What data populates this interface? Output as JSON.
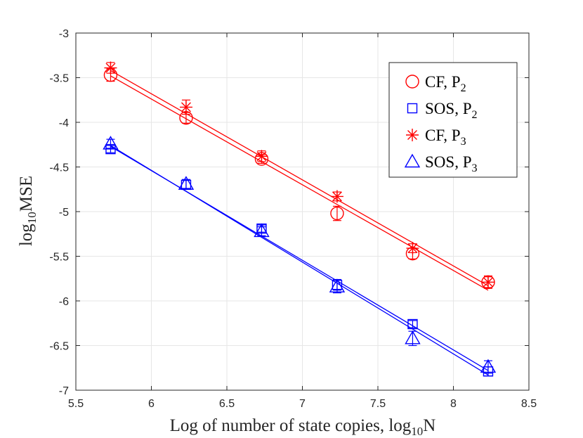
{
  "chart_data": {
    "type": "scatter",
    "xlabel": "Log of number of state copies, log",
    "xlabel_sub": "10",
    "xlabel_tail": "N",
    "ylabel": "log",
    "ylabel_sub": "10",
    "ylabel_tail": "MSE",
    "xlim": [
      5.5,
      8.5
    ],
    "ylim": [
      -7,
      -3
    ],
    "grid": true,
    "legend_position": "top-right",
    "x_ticks": [
      5.5,
      6,
      6.5,
      7,
      7.5,
      8,
      8.5
    ],
    "x_tick_labels": [
      "5.5",
      "6",
      "6.5",
      "7",
      "7.5",
      "8",
      "8.5"
    ],
    "y_ticks": [
      -3,
      -3.5,
      -4,
      -4.5,
      -5,
      -5.5,
      -6,
      -6.5,
      -7
    ],
    "y_tick_labels": [
      "-3",
      "-3.5",
      "-4",
      "-4.5",
      "-5",
      "-5.5",
      "-6",
      "-6.5",
      "-7"
    ],
    "series": [
      {
        "name": "CF, P2",
        "label_main": "CF, P",
        "label_sub": "2",
        "marker": "circle",
        "color": "#ff0000",
        "x": [
          5.73,
          6.23,
          6.73,
          7.23,
          7.73,
          8.23
        ],
        "y": [
          -3.47,
          -3.95,
          -4.41,
          -5.02,
          -5.47,
          -5.79
        ],
        "err": [
          0.07,
          0.06,
          0.05,
          0.08,
          0.06,
          0.07
        ],
        "fit": [
          -3.48,
          -5.88
        ]
      },
      {
        "name": "SOS, P2",
        "label_main": "SOS, P",
        "label_sub": "2",
        "marker": "square",
        "color": "#0000ff",
        "x": [
          5.73,
          6.23,
          6.73,
          7.23,
          7.73,
          8.23
        ],
        "y": [
          -4.3,
          -4.7,
          -5.19,
          -5.82,
          -6.26,
          -6.79
        ],
        "err": [
          0.04,
          0.05,
          0.04,
          0.06,
          0.04,
          0.05
        ],
        "fit": [
          -4.27,
          -6.78
        ]
      },
      {
        "name": "CF, P3",
        "label_main": "CF, P",
        "label_sub": "3",
        "marker": "asterisk",
        "color": "#ff0000",
        "x": [
          5.73,
          6.23,
          6.73,
          7.23,
          7.73,
          8.23
        ],
        "y": [
          -3.39,
          -3.83,
          -4.38,
          -4.83,
          -5.41,
          -5.79
        ],
        "err": [
          0.06,
          0.08,
          0.06,
          0.05,
          0.05,
          0.06
        ],
        "fit": [
          -3.42,
          -5.83
        ]
      },
      {
        "name": "SOS, P3",
        "label_main": "SOS, P",
        "label_sub": "3",
        "marker": "triangle",
        "color": "#0000ff",
        "x": [
          5.73,
          6.23,
          6.73,
          7.23,
          7.73,
          8.23
        ],
        "y": [
          -4.24,
          -4.69,
          -5.22,
          -5.84,
          -6.42,
          -6.74
        ],
        "err": [
          0.05,
          0.05,
          0.05,
          0.07,
          0.08,
          0.07
        ],
        "fit": [
          -4.26,
          -6.83
        ]
      }
    ]
  }
}
